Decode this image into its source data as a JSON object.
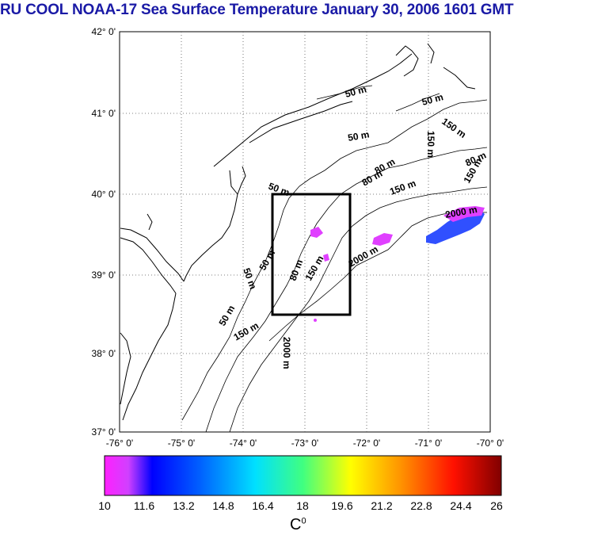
{
  "title": "RU COOL  NOAA-17 Sea Surface Temperature January 30, 2006 1601 GMT",
  "map": {
    "lon_range": [
      -76,
      -70
    ],
    "lat_range": [
      37,
      42
    ],
    "lat_ticks": [
      "42° 0'",
      "41° 0'",
      "40° 0'",
      "39° 0'",
      "38° 0'",
      "37° 0'"
    ],
    "lon_ticks": [
      "-76° 0'",
      "-75° 0'",
      "-74° 0'",
      "-73° 0'",
      "-72° 0'",
      "-71° 0'",
      "-70° 0'"
    ],
    "contour_labels": [
      "50 m",
      "50 m",
      "50 m",
      "50 m",
      "50 m",
      "80 m",
      "80 m",
      "80 m",
      "150 m",
      "150 m",
      "150 m",
      "150 m",
      "2000 m",
      "2000 m",
      "2000 m",
      "50 m",
      "50 m",
      "80 m",
      "150 m",
      "150 m"
    ],
    "box": {
      "lon": [
        -73.45,
        -72.3
      ],
      "lat": [
        38.5,
        40.0
      ]
    }
  },
  "colorbar": {
    "min": 10,
    "max": 26,
    "tick_labels": [
      "10",
      "11.6",
      "13.2",
      "14.8",
      "16.4",
      "18",
      "19.6",
      "21.2",
      "22.8",
      "24.4",
      "26"
    ],
    "unit": "C",
    "unit_sup": "0"
  },
  "colors": {
    "title": "#1a1aa6",
    "cold_patch": "#2040ff",
    "magenta_patch": "#ff30ff"
  }
}
